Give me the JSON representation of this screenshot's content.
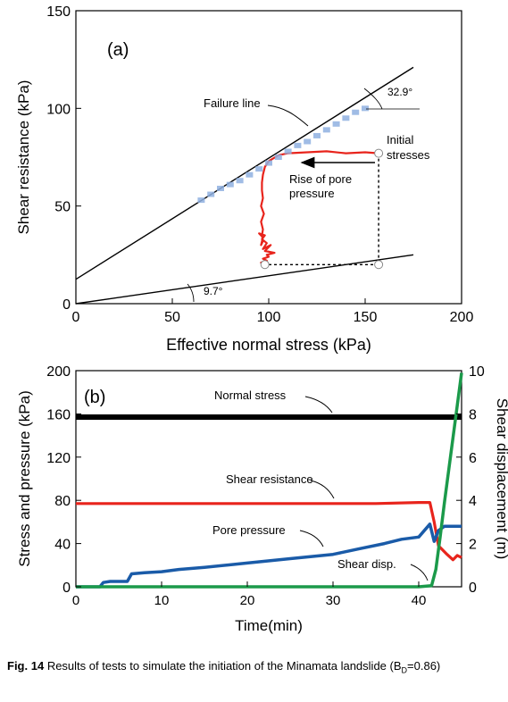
{
  "caption": {
    "figure_label": "Fig. 14",
    "text": "Results of tests to simulate the initiation of the Minamata landslide",
    "param_prefix": "(B",
    "param_sub": "D",
    "param_value": "=0.86)"
  },
  "chart_data": [
    {
      "type": "line",
      "panel_label": "(a)",
      "xlabel": "Effective normal stress (kPa)",
      "ylabel": "Shear resistance (kPa)",
      "xlim": [
        0,
        200
      ],
      "ylim": [
        0,
        150
      ],
      "xticks": [
        "0",
        "50",
        "100",
        "150",
        "200"
      ],
      "yticks": [
        "0",
        "50",
        "100",
        "150"
      ],
      "grid": false,
      "series": [
        {
          "name": "Failure line",
          "color": "#000000",
          "x": [
            0,
            175
          ],
          "y": [
            12.5,
            121
          ]
        },
        {
          "name": "Lower envelope",
          "color": "#000000",
          "x": [
            0,
            175
          ],
          "y": [
            0,
            25
          ]
        },
        {
          "name": "Stress path",
          "color": "#e8241c",
          "x": [
            157,
            150,
            140,
            130,
            120,
            110,
            105,
            100,
            98,
            97,
            96.5,
            96.5,
            97,
            96,
            97.5,
            96,
            97,
            96.5,
            97,
            96,
            97,
            95,
            98,
            96.5,
            99,
            97,
            101,
            98,
            103,
            99,
            100,
            97,
            99,
            96,
            97
          ],
          "y": [
            77,
            77.5,
            77,
            78,
            77.5,
            77,
            76,
            73,
            70,
            66,
            62,
            58,
            54,
            50,
            46,
            42,
            38,
            35,
            32,
            30,
            34,
            36,
            35,
            33,
            31,
            28,
            30,
            27,
            26,
            25,
            24,
            23,
            22,
            21,
            20
          ]
        },
        {
          "name": "Failure data",
          "color": "#8fb0e0",
          "x": [
            65,
            70,
            75,
            80,
            85,
            90,
            95,
            100,
            105,
            110,
            115,
            120,
            125,
            130,
            135,
            140,
            145,
            150
          ],
          "y": [
            53,
            56,
            59,
            61,
            63,
            66,
            69,
            72,
            75,
            78,
            81,
            83,
            86,
            89,
            92,
            95,
            98,
            100
          ]
        },
        {
          "name": "Initial to lower",
          "color": "#000000",
          "x": [
            157,
            157
          ],
          "y": [
            77,
            20
          ]
        },
        {
          "name": "Bottom link",
          "color": "#000000",
          "x": [
            100,
            157
          ],
          "y": [
            20,
            20
          ]
        }
      ],
      "annotations": {
        "failure_line": "Failure line",
        "angle_upper": "32.9°",
        "angle_lower": "9.7°",
        "initial_line1": "Initial",
        "initial_line2": "stresses",
        "pore_line1": "Rise of pore",
        "pore_line2": "pressure"
      },
      "markers": [
        {
          "x": 157,
          "y": 77
        },
        {
          "x": 157,
          "y": 20
        },
        {
          "x": 98,
          "y": 20
        }
      ]
    },
    {
      "type": "line",
      "panel_label": "(b)",
      "xlabel": "Time(min)",
      "ylabel": "Stress and pressure (kPa)",
      "y2label": "Shear displacement (m)",
      "xlim": [
        0,
        45
      ],
      "ylim": [
        0,
        200
      ],
      "y2lim": [
        0,
        10
      ],
      "xticks": [
        "0",
        "10",
        "20",
        "30",
        "40"
      ],
      "yticks": [
        "0",
        "40",
        "80",
        "120",
        "160",
        "200"
      ],
      "y2ticks": [
        "0",
        "2",
        "4",
        "6",
        "8",
        "10"
      ],
      "grid": false,
      "series": [
        {
          "name": "Normal stress",
          "color": "#000000",
          "axis": "left",
          "x": [
            0,
            5,
            10,
            15,
            20,
            25,
            30,
            35,
            40,
            42,
            43,
            45
          ],
          "y": [
            157,
            157,
            157,
            157,
            157,
            157,
            157,
            157,
            157,
            157,
            157,
            157
          ]
        },
        {
          "name": "Shear resistance",
          "color": "#e8241c",
          "axis": "left",
          "x": [
            0,
            5,
            10,
            15,
            20,
            25,
            30,
            35,
            40,
            41.3,
            41.8,
            42.3,
            42.8,
            43.3,
            44,
            44.5,
            45
          ],
          "y": [
            77,
            77,
            77,
            77,
            77,
            77,
            77,
            77,
            78,
            78,
            60,
            38,
            34,
            30,
            25,
            29,
            27
          ]
        },
        {
          "name": "Pore pressure",
          "color": "#1a5ba8",
          "axis": "left",
          "x": [
            0,
            2.8,
            3.2,
            4,
            6,
            6.5,
            8,
            10,
            12,
            15,
            20,
            25,
            30,
            33,
            36,
            38,
            40,
            41.3,
            41.8,
            42.3,
            43,
            45
          ],
          "y": [
            0,
            0,
            4,
            5,
            5,
            12,
            13,
            14,
            16,
            18,
            22,
            26,
            30,
            35,
            40,
            44,
            46,
            58,
            42,
            52,
            56,
            56
          ]
        },
        {
          "name": "Shear disp.",
          "color": "#1b9a4a",
          "axis": "right",
          "x": [
            0,
            40,
            41.5,
            42,
            42.5,
            43,
            43.5,
            44,
            44.5,
            45
          ],
          "y": [
            0,
            0,
            0.05,
            0.8,
            2.3,
            3.9,
            5.4,
            6.9,
            8.4,
            9.9
          ]
        }
      ],
      "annotations": {
        "normal_stress": "Normal stress",
        "shear_resistance": "Shear resistance",
        "pore_pressure": "Pore pressure",
        "shear_disp": "Shear disp."
      }
    }
  ]
}
